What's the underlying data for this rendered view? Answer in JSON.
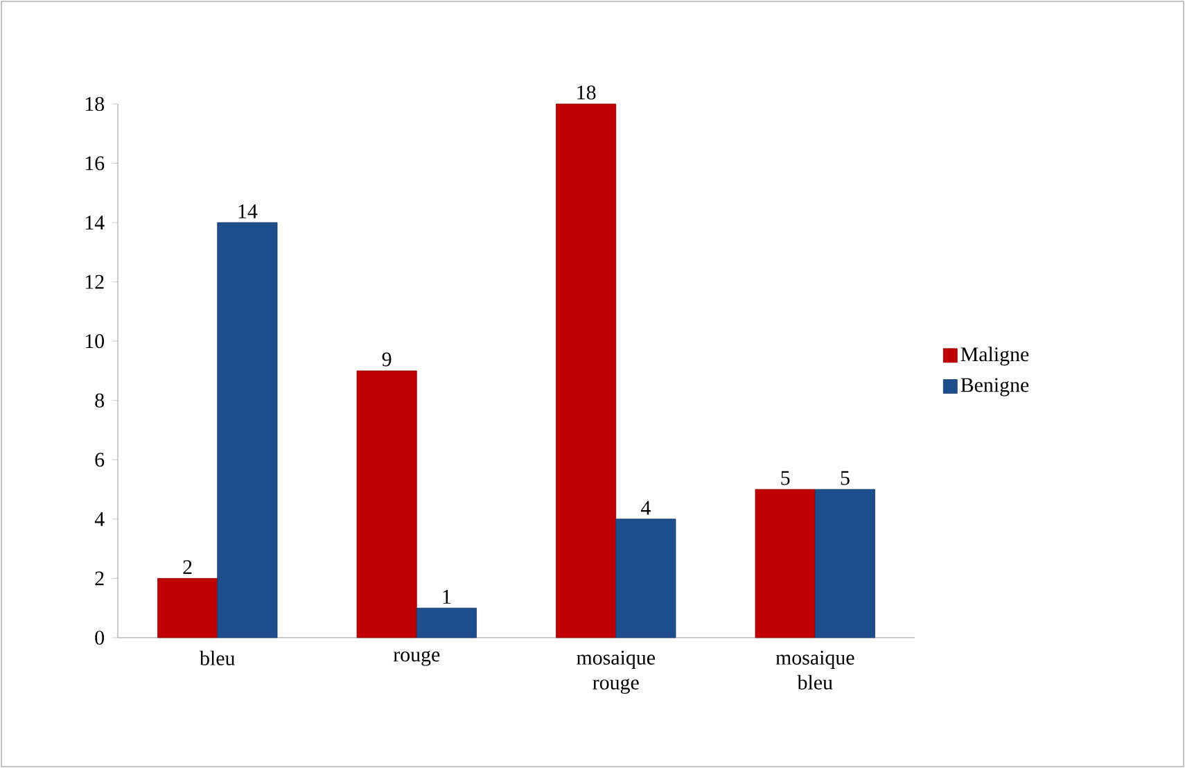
{
  "chart_data": {
    "type": "bar",
    "categories": [
      "bleu",
      "rouge",
      "mosaique rouge",
      "mosaique bleu"
    ],
    "series": [
      {
        "name": "Maligne",
        "color": "#c00000",
        "values": [
          2,
          9,
          18,
          5
        ]
      },
      {
        "name": "Benigne",
        "color": "#1f4e8c",
        "values": [
          14,
          1,
          4,
          5
        ]
      }
    ],
    "ylim": [
      0,
      18
    ],
    "yticks": [
      0,
      2,
      4,
      6,
      8,
      10,
      12,
      14,
      16,
      18
    ],
    "data_labels": true,
    "legend": "right"
  }
}
